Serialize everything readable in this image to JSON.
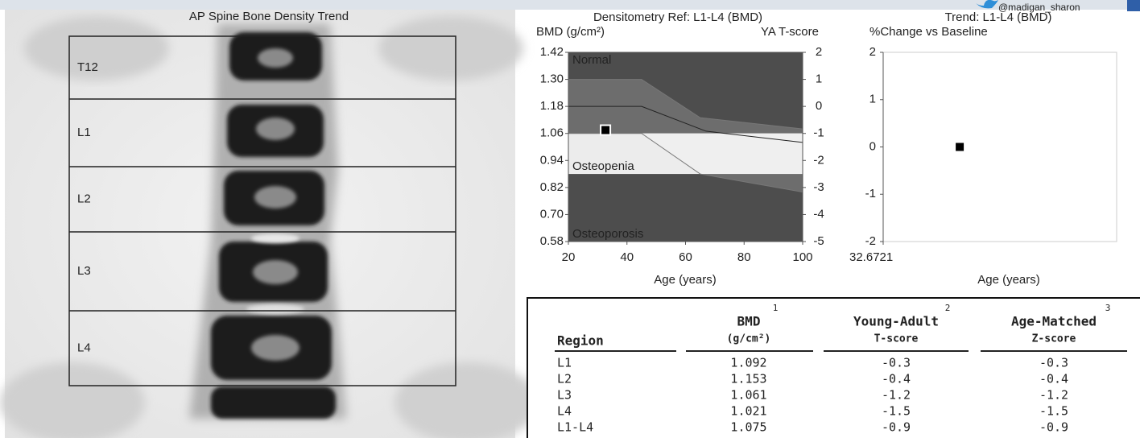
{
  "watermark": "@madigan_sharon",
  "spine": {
    "title": "AP Spine Bone Density Trend",
    "regions": [
      "T12",
      "L1",
      "L2",
      "L3",
      "L4"
    ]
  },
  "densitometry": {
    "title": "Densitometry Ref: L1-L4 (BMD)",
    "y_label": "BMD (g/cm²)",
    "y2_label": "YA T-score",
    "x_label": "Age (years)",
    "xlim": [
      20,
      100
    ],
    "xticks": [
      20,
      40,
      60,
      80,
      100
    ],
    "ylim": [
      0.58,
      1.42
    ],
    "yticks": [
      0.58,
      {
        "value": 0.7,
        "label": "0.70"
      },
      0.82,
      0.94,
      1.06,
      1.18,
      {
        "value": 1.3,
        "label": "1.30"
      },
      1.42
    ],
    "y2lim": [
      -5,
      2
    ],
    "y2ticks": [
      -5,
      -4,
      -3,
      -2,
      -1,
      0,
      1,
      2
    ],
    "zones": [
      {
        "label": "Normal",
        "from": -1,
        "to": 2,
        "color": "#4d4d4d"
      },
      {
        "label": "Osteopenia",
        "from": -2.5,
        "to": -1,
        "color": "#ececec"
      },
      {
        "label": "Osteoporosis",
        "from": -5,
        "to": -2.5,
        "color": "#4d4d4d"
      }
    ],
    "reference_curves": [
      {
        "x": [
          20,
          45,
          65,
          100
        ],
        "values": [
          1.3,
          1.3,
          1.13,
          1.08
        ]
      },
      {
        "x": [
          20,
          45,
          67,
          100
        ],
        "values": [
          1.18,
          1.18,
          1.07,
          1.02
        ]
      },
      {
        "x": [
          20,
          45,
          65,
          100
        ],
        "values": [
          1.06,
          1.06,
          0.88,
          0.8
        ]
      }
    ],
    "point": {
      "x": 32.6721,
      "value": 1.075
    }
  },
  "trend": {
    "title": "Trend: L1-L4 (BMD)",
    "y_label": "%Change vs Baseline",
    "x_label": "Age (years)",
    "xlim": [
      32.6721,
      33.6721
    ],
    "xticks": [
      32.6721
    ],
    "ylim": [
      -2,
      2
    ],
    "yticks": [
      -2,
      -1,
      0,
      1,
      2
    ],
    "point": {
      "x": 33.0,
      "value": 0
    }
  },
  "table": {
    "headers": [
      {
        "title": "Region"
      },
      {
        "title": "BMD",
        "sub": "(g/cm²)",
        "note": "1"
      },
      {
        "title": "Young-Adult",
        "sub": "T-score",
        "note": "2"
      },
      {
        "title": "Age-Matched",
        "sub": "Z-score",
        "note": "3"
      }
    ],
    "rows": [
      [
        "L1",
        "1.092",
        "-0.3",
        "-0.3"
      ],
      [
        "L2",
        "1.153",
        "-0.4",
        "-0.4"
      ],
      [
        "L3",
        "1.061",
        "-1.2",
        "-1.2"
      ],
      [
        "L4",
        "1.021",
        "-1.5",
        "-1.5"
      ],
      [
        "L1-L4",
        "1.075",
        "-0.9",
        "-0.9"
      ]
    ]
  }
}
